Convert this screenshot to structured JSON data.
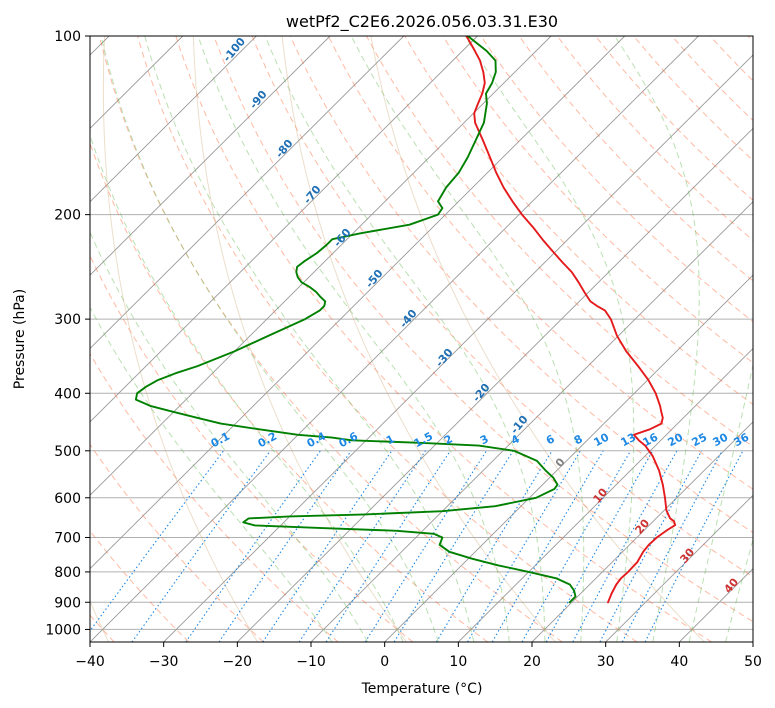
{
  "chart_data": {
    "type": "skew-t log-p",
    "title": "wetPf2_C2E6.2026.056.03.31.E30",
    "xlabel": "Temperature (°C)",
    "ylabel": "Pressure (hPa)",
    "xlim": [
      -40,
      50
    ],
    "ylim": [
      1050,
      100
    ],
    "y_scale": "log",
    "grid": true,
    "x_ticks": [
      -40,
      -30,
      -20,
      -10,
      0,
      10,
      20,
      30,
      40,
      50
    ],
    "x_tick_labels": [
      "−40",
      "−30",
      "−20",
      "−10",
      "0",
      "10",
      "20",
      "30",
      "40",
      "50"
    ],
    "y_ticks": [
      100,
      200,
      300,
      400,
      500,
      600,
      700,
      800,
      900,
      1000
    ],
    "y_tick_labels": [
      "100",
      "200",
      "300",
      "400",
      "500",
      "600",
      "700",
      "800",
      "900",
      "1000"
    ],
    "series": [
      {
        "role": "temperature",
        "color": "#e41a1c",
        "points": [
          [
            900,
            24.9
          ],
          [
            870,
            24.2
          ],
          [
            840,
            23.6
          ],
          [
            820,
            23.4
          ],
          [
            800,
            23.5
          ],
          [
            770,
            23.4
          ],
          [
            740,
            22.8
          ],
          [
            720,
            22.6
          ],
          [
            700,
            22.7
          ],
          [
            680,
            23.1
          ],
          [
            667,
            23.5
          ],
          [
            657,
            22.8
          ],
          [
            650,
            21.9
          ],
          [
            630,
            20.3
          ],
          [
            600,
            18.4
          ],
          [
            570,
            16.3
          ],
          [
            540,
            13.9
          ],
          [
            510,
            11.0
          ],
          [
            490,
            8.6
          ],
          [
            480,
            7.0
          ],
          [
            470,
            5.6
          ],
          [
            460,
            7.0
          ],
          [
            450,
            7.8
          ],
          [
            440,
            7.2
          ],
          [
            430,
            6.2
          ],
          [
            420,
            5.2
          ],
          [
            400,
            2.9
          ],
          [
            380,
            0.1
          ],
          [
            360,
            -3.2
          ],
          [
            340,
            -6.8
          ],
          [
            320,
            -10.2
          ],
          [
            300,
            -13.3
          ],
          [
            290,
            -15.3
          ],
          [
            285,
            -17.0
          ],
          [
            280,
            -18.5
          ],
          [
            270,
            -20.6
          ],
          [
            260,
            -22.7
          ],
          [
            250,
            -25.0
          ],
          [
            240,
            -27.8
          ],
          [
            230,
            -30.6
          ],
          [
            220,
            -33.5
          ],
          [
            210,
            -36.4
          ],
          [
            200,
            -39.6
          ],
          [
            190,
            -42.7
          ],
          [
            180,
            -45.8
          ],
          [
            170,
            -48.8
          ],
          [
            160,
            -51.8
          ],
          [
            150,
            -55.0
          ],
          [
            140,
            -58.5
          ],
          [
            135,
            -59.9
          ],
          [
            130,
            -60.7
          ],
          [
            125,
            -61.5
          ],
          [
            120,
            -62.6
          ],
          [
            115,
            -64.3
          ],
          [
            110,
            -66.3
          ],
          [
            105,
            -68.8
          ],
          [
            100,
            -71.5
          ]
        ]
      },
      {
        "role": "dewpoint",
        "color": "#008000",
        "points": [
          [
            900,
            19.7
          ],
          [
            880,
            19.7
          ],
          [
            860,
            18.7
          ],
          [
            840,
            17.3
          ],
          [
            820,
            14.6
          ],
          [
            800,
            10.0
          ],
          [
            780,
            5.0
          ],
          [
            760,
            0.5
          ],
          [
            740,
            -3.5
          ],
          [
            720,
            -5.8
          ],
          [
            700,
            -6.4
          ],
          [
            690,
            -8.1
          ],
          [
            682,
            -13.5
          ],
          [
            675,
            -24.0
          ],
          [
            668,
            -33.5
          ],
          [
            660,
            -35.5
          ],
          [
            650,
            -35.3
          ],
          [
            645,
            -30.0
          ],
          [
            640,
            -20.0
          ],
          [
            632,
            -10.0
          ],
          [
            620,
            -3.5
          ],
          [
            600,
            0.9
          ],
          [
            580,
            2.2
          ],
          [
            570,
            2.0
          ],
          [
            555,
            0.5
          ],
          [
            540,
            -1.5
          ],
          [
            520,
            -4.0
          ],
          [
            500,
            -8.5
          ],
          [
            490,
            -14.0
          ],
          [
            485,
            -22.0
          ],
          [
            480,
            -32.0
          ],
          [
            475,
            -35.0
          ],
          [
            470,
            -40.0
          ],
          [
            460,
            -46.0
          ],
          [
            450,
            -52.0
          ],
          [
            440,
            -56.0
          ],
          [
            430,
            -60.0
          ],
          [
            420,
            -64.0
          ],
          [
            410,
            -66.8
          ],
          [
            400,
            -67.5
          ],
          [
            390,
            -67.2
          ],
          [
            380,
            -66.5
          ],
          [
            370,
            -65.0
          ],
          [
            360,
            -63.0
          ],
          [
            340,
            -60.0
          ],
          [
            320,
            -57.5
          ],
          [
            300,
            -54.8
          ],
          [
            290,
            -54.0
          ],
          [
            285,
            -54.0
          ],
          [
            280,
            -54.5
          ],
          [
            275,
            -55.8
          ],
          [
            270,
            -57.0
          ],
          [
            265,
            -58.5
          ],
          [
            260,
            -60.3
          ],
          [
            255,
            -61.5
          ],
          [
            250,
            -62.4
          ],
          [
            245,
            -63.0
          ],
          [
            240,
            -62.8
          ],
          [
            232,
            -62.2
          ],
          [
            225,
            -62.0
          ],
          [
            220,
            -62.0
          ],
          [
            215,
            -59.0
          ],
          [
            208,
            -53.5
          ],
          [
            200,
            -51.0
          ],
          [
            195,
            -51.3
          ],
          [
            190,
            -52.8
          ],
          [
            180,
            -53.6
          ],
          [
            170,
            -53.9
          ],
          [
            160,
            -54.8
          ],
          [
            150,
            -56.0
          ],
          [
            140,
            -57.3
          ],
          [
            130,
            -59.5
          ],
          [
            125,
            -61.0
          ],
          [
            120,
            -61.6
          ],
          [
            115,
            -62.6
          ],
          [
            110,
            -64.2
          ],
          [
            106,
            -66.7
          ],
          [
            100,
            -71.3
          ]
        ]
      }
    ],
    "reference_lines": {
      "dry_adiabat_color": "#ff6633",
      "moist_adiabat_color": "#66bb55",
      "isotherm_color": "#999999",
      "mixing_ratio_color": "#1e88e5",
      "dry_adiabat_label_color": "#1f6fb4",
      "moist_adiabat_label_color": "#cc3333",
      "isotherm_label_color": "#808080",
      "dry_adiabat_labels": [
        "-100",
        "-90",
        "-80",
        "-70",
        "-60",
        "-50",
        "-40",
        "-30",
        "-20",
        "-10"
      ],
      "moist_adiabat_labels": [
        "0",
        "10",
        "20",
        "30",
        "40"
      ],
      "mixing_ratio_labels": [
        "0.1",
        "0.2",
        "0.4",
        "0.6",
        "1",
        "1.5",
        "2",
        "3",
        "4",
        "6",
        "8",
        "10",
        "13",
        "16",
        "20",
        "25",
        "30",
        "36"
      ]
    }
  }
}
